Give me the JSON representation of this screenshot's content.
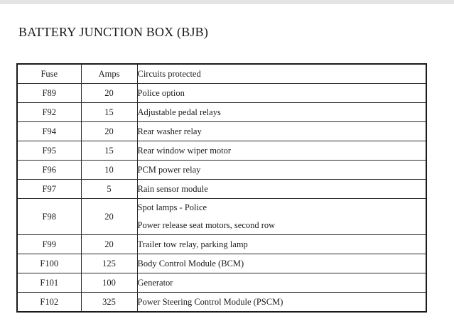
{
  "page": {
    "title": "BATTERY JUNCTION BOX (BJB)"
  },
  "table": {
    "headers": {
      "fuse": "Fuse",
      "amps": "Amps",
      "circuits": "Circuits protected"
    },
    "rows": [
      {
        "fuse": "F89",
        "amps": "20",
        "circuits": [
          "Police option"
        ]
      },
      {
        "fuse": "F92",
        "amps": "15",
        "circuits": [
          "Adjustable pedal relays"
        ]
      },
      {
        "fuse": "F94",
        "amps": "20",
        "circuits": [
          "Rear washer relay"
        ]
      },
      {
        "fuse": "F95",
        "amps": "15",
        "circuits": [
          "Rear window wiper motor"
        ]
      },
      {
        "fuse": "F96",
        "amps": "10",
        "circuits": [
          "PCM power relay"
        ]
      },
      {
        "fuse": "F97",
        "amps": "5",
        "circuits": [
          "Rain sensor module"
        ]
      },
      {
        "fuse": "F98",
        "amps": "20",
        "circuits": [
          "Spot lamps - Police",
          "Power release seat motors, second row"
        ]
      },
      {
        "fuse": "F99",
        "amps": "20",
        "circuits": [
          "Trailer tow relay, parking lamp"
        ]
      },
      {
        "fuse": "F100",
        "amps": "125",
        "circuits": [
          "Body Control Module (BCM)"
        ]
      },
      {
        "fuse": "F101",
        "amps": "100",
        "circuits": [
          "Generator"
        ]
      },
      {
        "fuse": "F102",
        "amps": "325",
        "circuits": [
          "Power Steering Control Module (PSCM)"
        ]
      }
    ]
  },
  "colors": {
    "background": "#ffffff",
    "top_bar": "#e4e4e4",
    "table_border": "#1a1a1a",
    "text": "#1c1c1c"
  }
}
